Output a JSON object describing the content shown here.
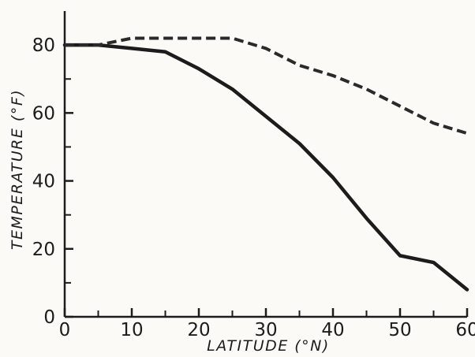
{
  "chart_data": {
    "type": "line",
    "title": "",
    "xlabel": "LATITUDE (°N)",
    "ylabel": "TEMPERATURE (°F)",
    "xlim": [
      0,
      60
    ],
    "ylim": [
      0,
      90
    ],
    "x_ticks": [
      0,
      10,
      20,
      30,
      40,
      50,
      60
    ],
    "y_ticks": [
      0,
      20,
      40,
      60,
      80
    ],
    "grid": false,
    "legend": "none",
    "series": [
      {
        "style": "solid",
        "color": "#1c1c1c",
        "x": [
          0,
          5,
          10,
          15,
          20,
          25,
          30,
          35,
          40,
          45,
          50,
          55,
          60
        ],
        "y": [
          80,
          80,
          79,
          78,
          73,
          67,
          59,
          51,
          41,
          29,
          18,
          16,
          8
        ]
      },
      {
        "style": "dashed",
        "color": "#2a2a2a",
        "x": [
          0,
          5,
          10,
          15,
          20,
          25,
          30,
          35,
          40,
          45,
          50,
          55,
          60
        ],
        "y": [
          80,
          80,
          82,
          82,
          82,
          82,
          79,
          74,
          71,
          67,
          62,
          57,
          54
        ]
      }
    ]
  }
}
